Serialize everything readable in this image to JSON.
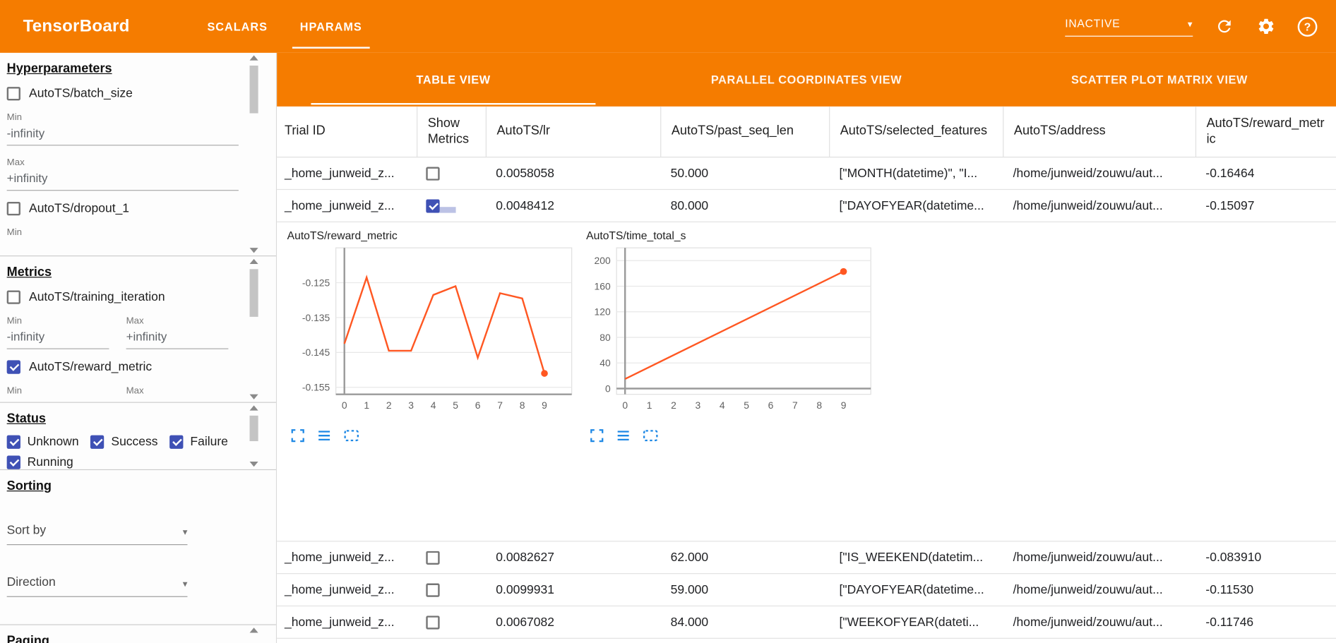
{
  "palette": {
    "accent_orange": "#f57c00",
    "checkbox_blue": "#3f51b5",
    "chart_line_orange": "#ff5722",
    "chart_icon_blue": "#1e88e5"
  },
  "header": {
    "title": "TensorBoard",
    "tabs": [
      {
        "label": "SCALARS",
        "active": false
      },
      {
        "label": "HPARAMS",
        "active": true
      }
    ],
    "run_status": "INACTIVE"
  },
  "sidebar": {
    "hyperparameters": {
      "heading": "Hyperparameters",
      "items": [
        {
          "label": "AutoTS/batch_size",
          "checked": false,
          "min_label": "Min",
          "min_value": "-infinity",
          "max_label": "Max",
          "max_value": "+infinity"
        },
        {
          "label": "AutoTS/dropout_1",
          "checked": false,
          "min_label": "Min"
        }
      ]
    },
    "metrics": {
      "heading": "Metrics",
      "items": [
        {
          "label": "AutoTS/training_iteration",
          "checked": false,
          "min_label": "Min",
          "min_value": "-infinity",
          "max_label": "Max",
          "max_value": "+infinity"
        },
        {
          "label": "AutoTS/reward_metric",
          "checked": true,
          "min_label": "Min",
          "max_label": "Max"
        }
      ]
    },
    "status": {
      "heading": "Status",
      "items": [
        {
          "label": "Unknown",
          "checked": true
        },
        {
          "label": "Success",
          "checked": true
        },
        {
          "label": "Failure",
          "checked": true
        },
        {
          "label": "Running",
          "checked": true
        }
      ]
    },
    "sorting": {
      "heading": "Sorting",
      "sort_by_label": "Sort by",
      "direction_label": "Direction"
    },
    "paging": {
      "heading": "Paging"
    }
  },
  "main": {
    "view_tabs": [
      {
        "label": "TABLE VIEW",
        "active": true
      },
      {
        "label": "PARALLEL COORDINATES VIEW",
        "active": false
      },
      {
        "label": "SCATTER PLOT MATRIX VIEW",
        "active": false
      }
    ],
    "table": {
      "columns": [
        "Trial ID",
        "Show Metrics",
        "AutoTS/lr",
        "AutoTS/past_seq_len",
        "AutoTS/selected_features",
        "AutoTS/address",
        "AutoTS/reward_metric"
      ],
      "rows": [
        {
          "trial_id": "_home_junweid_z...",
          "show_metrics": false,
          "lr": "0.0058058",
          "past_seq_len": "50.000",
          "selected_features": "[\"MONTH(datetime)\", \"I...",
          "address": "/home/junweid/zouwu/aut...",
          "reward_metric": "-0.16464"
        },
        {
          "trial_id": "_home_junweid_z...",
          "show_metrics": true,
          "ripple": true,
          "lr": "0.0048412",
          "past_seq_len": "80.000",
          "selected_features": "[\"DAYOFYEAR(datetime...",
          "address": "/home/junweid/zouwu/aut...",
          "reward_metric": "-0.15097"
        },
        {
          "trial_id": "_home_junweid_z...",
          "show_metrics": false,
          "lr": "0.0082627",
          "past_seq_len": "62.000",
          "selected_features": "[\"IS_WEEKEND(datetim...",
          "address": "/home/junweid/zouwu/aut...",
          "reward_metric": "-0.083910"
        },
        {
          "trial_id": "_home_junweid_z...",
          "show_metrics": false,
          "lr": "0.0099931",
          "past_seq_len": "59.000",
          "selected_features": "[\"DAYOFYEAR(datetime...",
          "address": "/home/junweid/zouwu/aut...",
          "reward_metric": "-0.11530"
        },
        {
          "trial_id": "_home_junweid_z...",
          "show_metrics": false,
          "lr": "0.0067082",
          "past_seq_len": "84.000",
          "selected_features": "[\"WEEKOFYEAR(dateti...",
          "address": "/home/junweid/zouwu/aut...",
          "reward_metric": "-0.11746"
        }
      ]
    },
    "chart_data": [
      {
        "type": "line",
        "title": "AutoTS/reward_metric",
        "x": [
          0,
          1,
          2,
          3,
          4,
          5,
          6,
          7,
          8,
          9
        ],
        "values": [
          -0.1425,
          -0.1235,
          -0.1445,
          -0.1445,
          -0.1285,
          -0.126,
          -0.1465,
          -0.128,
          -0.1295,
          -0.151
        ],
        "xticks": [
          0,
          1,
          2,
          3,
          4,
          5,
          6,
          7,
          8,
          9
        ],
        "yticks": [
          -0.155,
          -0.145,
          -0.135,
          -0.125
        ],
        "ylim": [
          -0.157,
          -0.115
        ],
        "line_color": "#ff5722",
        "end_marker": true,
        "grid": true,
        "legend": false
      },
      {
        "type": "line",
        "title": "AutoTS/time_total_s",
        "x": [
          0,
          9
        ],
        "values": [
          15,
          183
        ],
        "xticks": [
          0,
          1,
          2,
          3,
          4,
          5,
          6,
          7,
          8,
          9
        ],
        "yticks": [
          0,
          40,
          80,
          120,
          160,
          200
        ],
        "ylim": [
          -9,
          220
        ],
        "line_color": "#ff5722",
        "end_marker": true,
        "grid": true,
        "legend": false
      }
    ]
  }
}
